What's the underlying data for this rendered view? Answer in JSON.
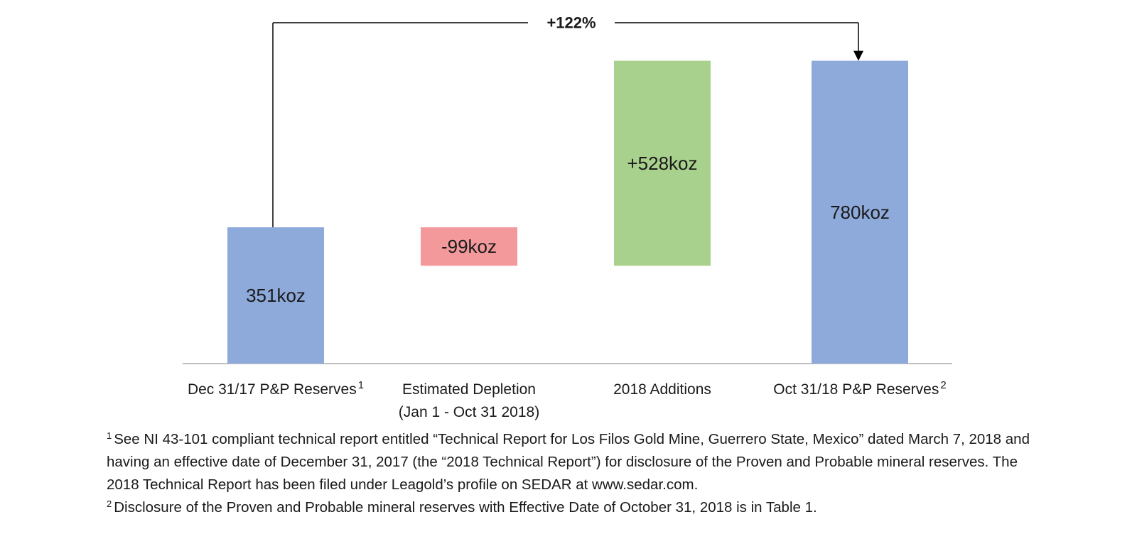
{
  "chart_data": {
    "type": "waterfall",
    "title": "",
    "xlabel": "",
    "ylabel": "",
    "unit": "koz",
    "ylim": [
      0,
      878
    ],
    "grid": false,
    "legend": "none",
    "colors": {
      "total": "#8eaadb",
      "decrease": "#f4999b",
      "increase": "#a9d18e",
      "axis": "#bfbfbf"
    },
    "bars": [
      {
        "category": [
          "Dec 31/17 P&P Reserves"
        ],
        "superscript": "1",
        "kind": "total",
        "start": 0,
        "end": 351,
        "label": "351koz"
      },
      {
        "category": [
          "Estimated Depletion",
          "(Jan 1 - Oct 31 2018)"
        ],
        "superscript": "",
        "kind": "decrease",
        "start": 351,
        "end": 252,
        "label": "-99koz"
      },
      {
        "category": [
          "2018 Additions"
        ],
        "superscript": "",
        "kind": "increase",
        "start": 252,
        "end": 780,
        "label": "+528koz"
      },
      {
        "category": [
          "Oct 31/18 P&P Reserves"
        ],
        "superscript": "2",
        "kind": "total",
        "start": 0,
        "end": 780,
        "label": "780koz"
      }
    ],
    "annotation": {
      "text": "+122%",
      "from_bar": 0,
      "to_bar": 3
    }
  },
  "footnotes": [
    {
      "marker": "1",
      "text": "See NI 43-101 compliant technical report entitled “Technical Report for Los Filos Gold Mine, Guerrero State, Mexico” dated March 7, 2018 and having an effective date of December 31, 2017 (the “2018 Technical Report”) for disclosure of the Proven and Probable mineral reserves. The 2018 Technical Report has been filed under Leagold’s profile on SEDAR at www.sedar.com."
    },
    {
      "marker": "2",
      "text": "Disclosure of the Proven and Probable mineral reserves with Effective Date of October 31, 2018 is in Table 1."
    }
  ]
}
